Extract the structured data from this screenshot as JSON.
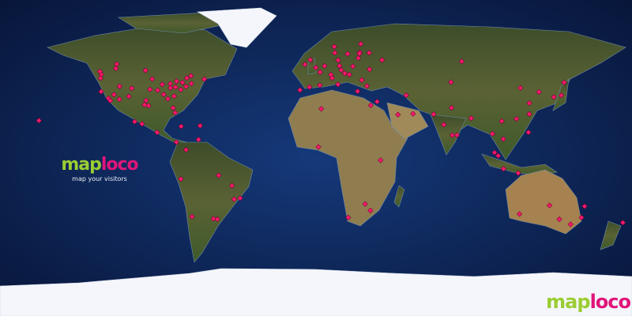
{
  "logo": {
    "part1": "map",
    "part2": "loco",
    "tagline": "map your visitors"
  },
  "watermark": {
    "part1": "map",
    "part2": "loco"
  },
  "colors": {
    "marker": "#ff1a6e",
    "logo_green": "#9acd32",
    "logo_pink": "#e0157a",
    "ocean": "#0e2a5c"
  },
  "visitors": [
    [
      47.6,
      -122.3
    ],
    [
      45.5,
      -122.7
    ],
    [
      37.8,
      -122.4
    ],
    [
      34.0,
      -118.2
    ],
    [
      32.7,
      -117.2
    ],
    [
      33.4,
      -112.0
    ],
    [
      39.7,
      -105.0
    ],
    [
      32.8,
      -96.8
    ],
    [
      29.8,
      -95.4
    ],
    [
      41.9,
      -87.6
    ],
    [
      42.3,
      -83.0
    ],
    [
      40.7,
      -74.0
    ],
    [
      42.4,
      -71.0
    ],
    [
      38.9,
      -77.0
    ],
    [
      33.7,
      -84.4
    ],
    [
      25.8,
      -80.2
    ],
    [
      43.7,
      -79.4
    ],
    [
      45.5,
      -73.6
    ],
    [
      49.3,
      -123.1
    ],
    [
      51.0,
      -114.0
    ],
    [
      45.0,
      -93.3
    ],
    [
      38.6,
      -90.2
    ],
    [
      36.2,
      -86.8
    ],
    [
      28.5,
      -81.4
    ],
    [
      40.8,
      -111.9
    ],
    [
      39.1,
      -94.6
    ],
    [
      49.9,
      -97.1
    ],
    [
      53.5,
      -113.5
    ],
    [
      19.4,
      -99.1
    ],
    [
      20.7,
      -103.3
    ],
    [
      21.3,
      -157.8
    ],
    [
      35.2,
      -80.8
    ],
    [
      39.9,
      -82.9
    ],
    [
      44.9,
      -63.6
    ],
    [
      30.3,
      -97.7
    ],
    [
      36.1,
      -115.1
    ],
    [
      35.1,
      -106.6
    ],
    [
      40.4,
      -80.0
    ],
    [
      43.0,
      -76.1
    ],
    [
      46.8,
      -71.2
    ],
    [
      9.0,
      -79.5
    ],
    [
      4.7,
      -74.0
    ],
    [
      10.5,
      -66.9
    ],
    [
      -12.0,
      -77.0
    ],
    [
      -33.4,
      -70.6
    ],
    [
      -34.6,
      -58.4
    ],
    [
      -23.5,
      -46.6
    ],
    [
      -22.9,
      -43.2
    ],
    [
      -15.8,
      -47.9
    ],
    [
      -34.9,
      -56.2
    ],
    [
      18.4,
      -66.0
    ],
    [
      18.0,
      -76.8
    ],
    [
      14.6,
      -90.5
    ],
    [
      -9.9,
      -55.4
    ],
    [
      51.5,
      -0.1
    ],
    [
      48.9,
      2.3
    ],
    [
      40.4,
      -3.7
    ],
    [
      38.7,
      -9.1
    ],
    [
      52.5,
      13.4
    ],
    [
      41.9,
      12.5
    ],
    [
      52.4,
      4.9
    ],
    [
      59.3,
      18.0
    ],
    [
      59.9,
      10.7
    ],
    [
      60.2,
      24.9
    ],
    [
      52.2,
      21.0
    ],
    [
      48.2,
      16.4
    ],
    [
      38.0,
      23.7
    ],
    [
      41.0,
      29.0
    ],
    [
      55.8,
      37.6
    ],
    [
      59.9,
      30.3
    ],
    [
      50.5,
      30.5
    ],
    [
      44.4,
      26.1
    ],
    [
      53.3,
      -6.3
    ],
    [
      55.7,
      12.6
    ],
    [
      50.1,
      14.4
    ],
    [
      47.5,
      19.0
    ],
    [
      47.4,
      8.5
    ],
    [
      41.4,
      2.2
    ],
    [
      45.5,
      9.2
    ],
    [
      59.4,
      24.7
    ],
    [
      56.9,
      24.1
    ],
    [
      55.9,
      -3.2
    ],
    [
      63.4,
      10.4
    ],
    [
      65.0,
      25.5
    ],
    [
      30.0,
      31.2
    ],
    [
      32.1,
      34.8
    ],
    [
      24.7,
      46.7
    ],
    [
      25.2,
      55.3
    ],
    [
      35.7,
      51.4
    ],
    [
      28.0,
      3.0
    ],
    [
      6.3,
      1.4
    ],
    [
      -1.3,
      36.8
    ],
    [
      -26.2,
      28.0
    ],
    [
      -33.9,
      18.4
    ],
    [
      -29.9,
      31.0
    ],
    [
      28.6,
      77.2
    ],
    [
      19.0,
      72.8
    ],
    [
      13.0,
      77.6
    ],
    [
      13.0,
      80.3
    ],
    [
      22.6,
      88.4
    ],
    [
      13.8,
      100.5
    ],
    [
      1.3,
      103.8
    ],
    [
      3.1,
      101.7
    ],
    [
      -6.2,
      106.8
    ],
    [
      14.6,
      121.0
    ],
    [
      22.3,
      114.2
    ],
    [
      31.2,
      121.5
    ],
    [
      39.9,
      116.4
    ],
    [
      37.6,
      127.0
    ],
    [
      35.7,
      139.7
    ],
    [
      34.7,
      135.5
    ],
    [
      25.0,
      121.5
    ],
    [
      21.0,
      105.8
    ],
    [
      10.8,
      106.7
    ],
    [
      24.9,
      67.0
    ],
    [
      43.2,
      76.9
    ],
    [
      55.0,
      83.0
    ],
    [
      43.0,
      141.3
    ],
    [
      -31.9,
      115.9
    ],
    [
      -33.9,
      151.2
    ],
    [
      -37.8,
      145.0
    ],
    [
      -27.5,
      153.0
    ],
    [
      -34.9,
      138.6
    ],
    [
      -36.8,
      174.8
    ],
    [
      -27.0,
      133.0
    ],
    [
      -8.6,
      115.2
    ]
  ]
}
